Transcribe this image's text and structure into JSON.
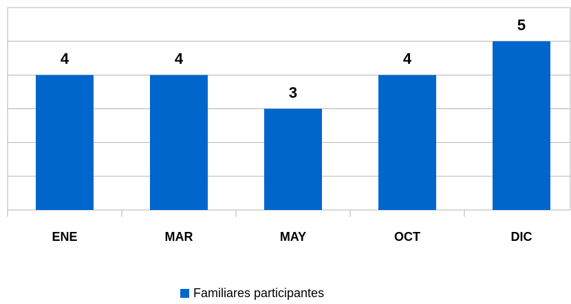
{
  "chart_data": {
    "type": "bar",
    "categories": [
      "ENE",
      "MAR",
      "MAY",
      "OCT",
      "DIC"
    ],
    "series": [
      {
        "name": "Familiares participantes",
        "color": "#0066cc",
        "values": [
          4,
          4,
          3,
          4,
          5
        ]
      }
    ],
    "ylim": [
      0,
      6
    ],
    "yticks": [
      0,
      1,
      2,
      3,
      4,
      5,
      6
    ],
    "grid": true,
    "legend": "bottom"
  }
}
